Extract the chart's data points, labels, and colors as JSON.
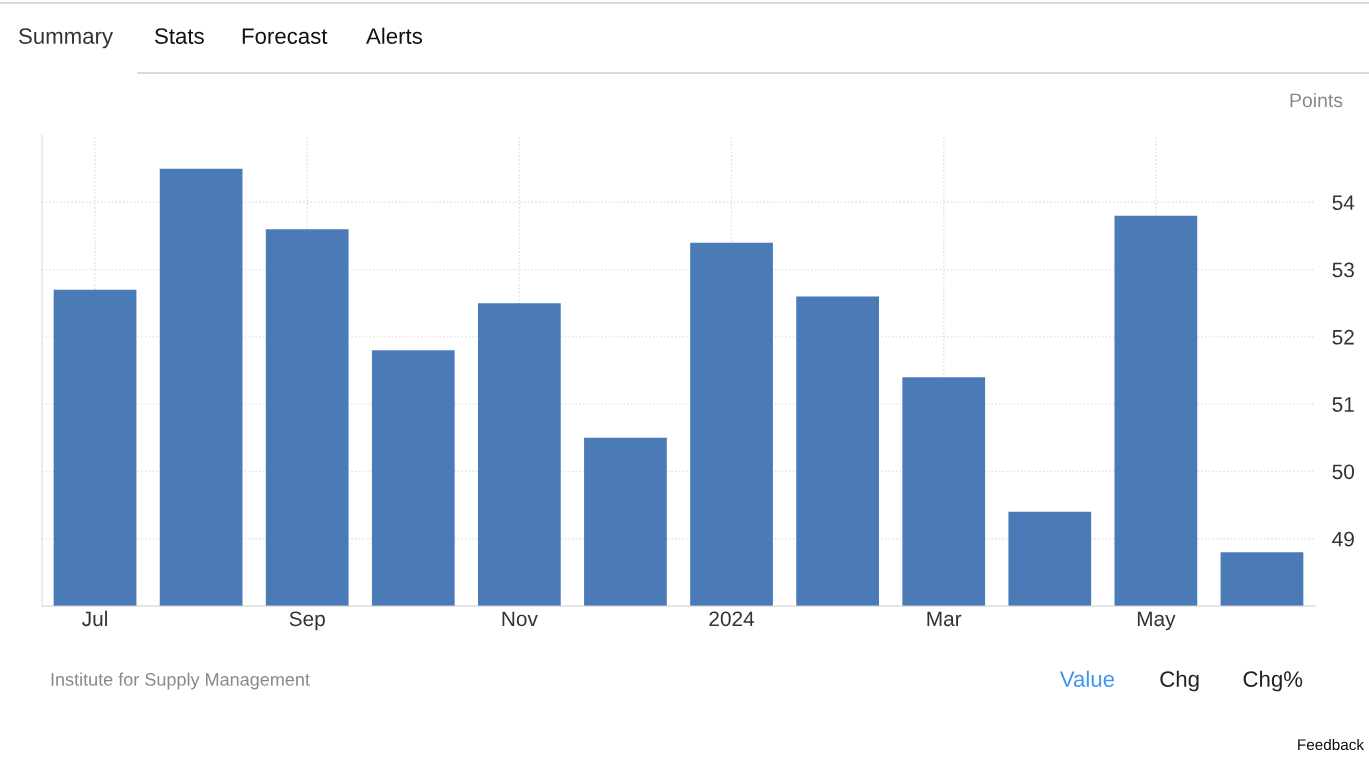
{
  "chart_data": {
    "type": "bar",
    "ylabel": "Points",
    "categories": [
      "Jul",
      null,
      "Sep",
      null,
      "Nov",
      null,
      "2024",
      null,
      "Mar",
      null,
      "May",
      null
    ],
    "values": [
      52.7,
      54.5,
      53.6,
      51.8,
      52.5,
      50.5,
      53.4,
      52.6,
      51.4,
      49.4,
      53.8,
      48.8
    ],
    "color": "#4a7bb7",
    "ylim": [
      48,
      55
    ],
    "yticks": [
      49,
      50,
      51,
      52,
      53,
      54
    ],
    "grid": true,
    "legend": false,
    "annotations": [
      "Summary",
      "Stats",
      "Forecast",
      "Alerts",
      "Institute for Supply Management",
      "Value",
      "Chg",
      "Chg%",
      "Feedback"
    ]
  }
}
